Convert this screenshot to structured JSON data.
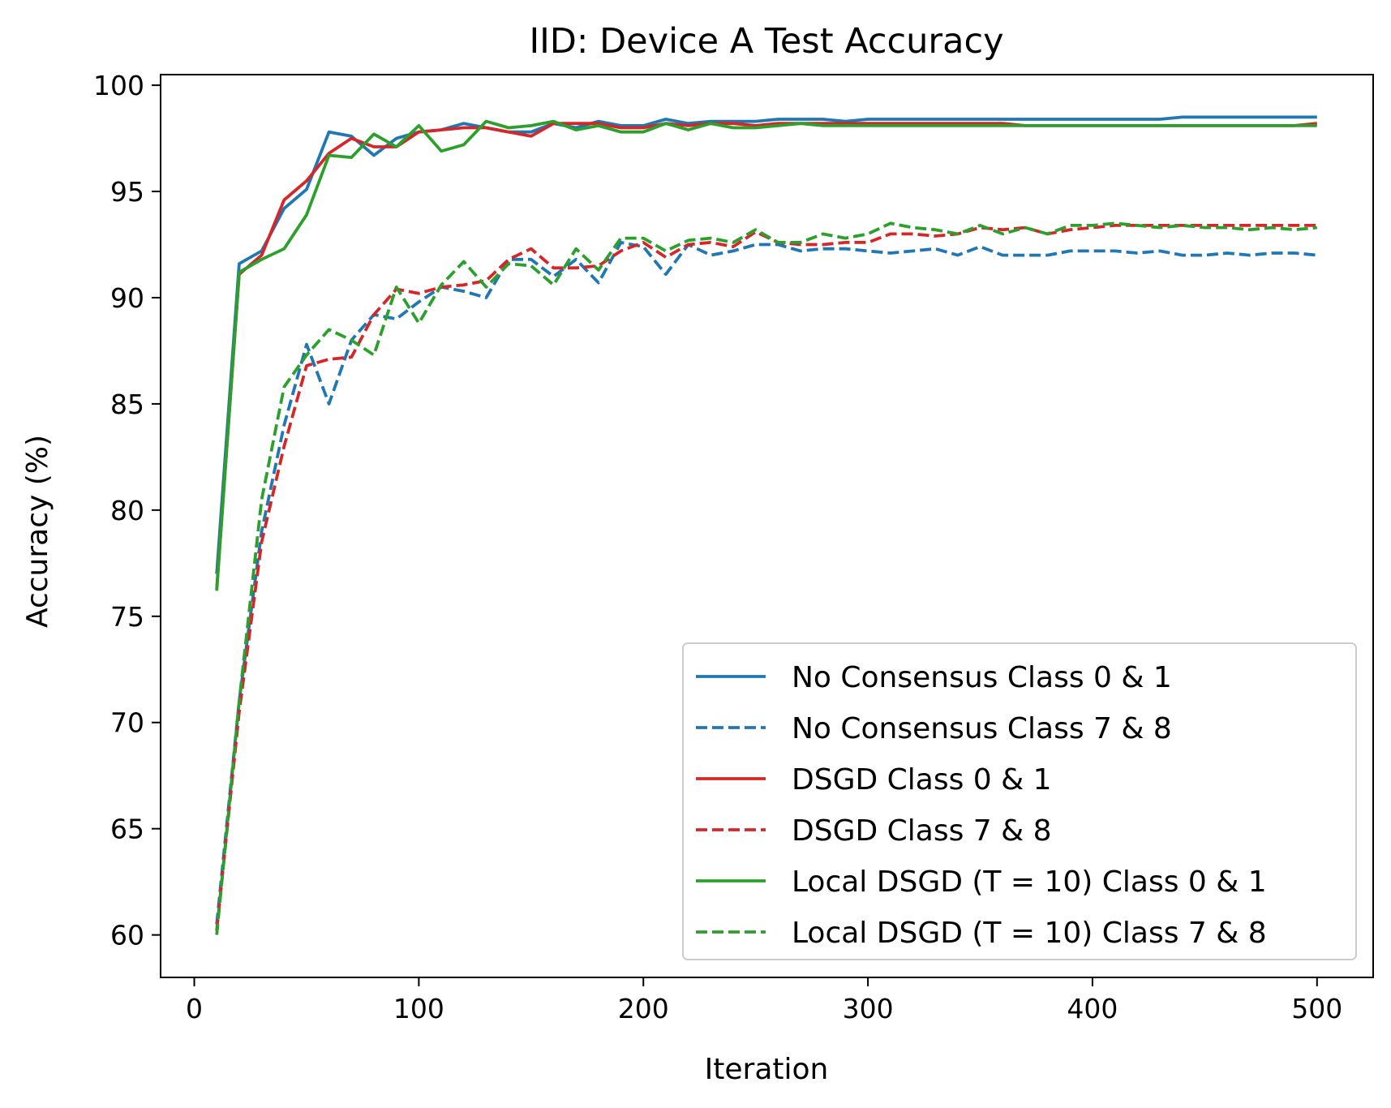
{
  "chart_data": {
    "type": "line",
    "title": "IID: Device A Test Accuracy",
    "xlabel": "Iteration",
    "ylabel": "Accuracy (%)",
    "xlim": [
      -15,
      525
    ],
    "ylim": [
      58,
      100.5
    ],
    "xticks": [
      0,
      100,
      200,
      300,
      400,
      500
    ],
    "yticks": [
      60,
      65,
      70,
      75,
      80,
      85,
      90,
      95,
      100
    ],
    "grid": false,
    "legend_position": "lower-right",
    "x": [
      10,
      20,
      30,
      40,
      50,
      60,
      70,
      80,
      90,
      100,
      110,
      120,
      130,
      140,
      150,
      160,
      170,
      180,
      190,
      200,
      210,
      220,
      230,
      240,
      250,
      260,
      270,
      280,
      290,
      300,
      310,
      320,
      330,
      340,
      350,
      360,
      370,
      380,
      390,
      400,
      410,
      420,
      430,
      440,
      450,
      460,
      470,
      480,
      490,
      500
    ],
    "series": [
      {
        "name": "No Consensus Class 0 & 1",
        "color": "#1f77b4",
        "style": "solid",
        "values": [
          77.0,
          91.6,
          92.2,
          94.2,
          95.1,
          97.8,
          97.6,
          96.7,
          97.5,
          97.8,
          97.9,
          98.2,
          98.0,
          97.8,
          97.8,
          98.2,
          98.0,
          98.3,
          98.1,
          98.1,
          98.4,
          98.2,
          98.3,
          98.3,
          98.3,
          98.4,
          98.4,
          98.4,
          98.3,
          98.4,
          98.4,
          98.4,
          98.4,
          98.4,
          98.4,
          98.4,
          98.4,
          98.4,
          98.4,
          98.4,
          98.4,
          98.4,
          98.4,
          98.5,
          98.5,
          98.5,
          98.5,
          98.5,
          98.5,
          98.5
        ]
      },
      {
        "name": "No Consensus Class 7 & 8",
        "color": "#1f77b4",
        "style": "dashed",
        "values": [
          60.5,
          71.0,
          79.0,
          84.0,
          87.8,
          85.0,
          88.0,
          89.2,
          89.0,
          89.8,
          90.5,
          90.3,
          90.0,
          91.8,
          91.8,
          91.0,
          91.8,
          90.7,
          92.6,
          92.4,
          91.1,
          92.5,
          92.0,
          92.2,
          92.5,
          92.5,
          92.2,
          92.3,
          92.3,
          92.2,
          92.1,
          92.2,
          92.3,
          92.0,
          92.4,
          92.0,
          92.0,
          92.0,
          92.2,
          92.2,
          92.2,
          92.1,
          92.2,
          92.0,
          92.0,
          92.1,
          92.0,
          92.1,
          92.1,
          92.0
        ]
      },
      {
        "name": "DSGD Class 0 & 1",
        "color": "#d62728",
        "style": "solid",
        "values": [
          76.3,
          91.1,
          92.0,
          94.6,
          95.5,
          96.8,
          97.5,
          97.1,
          97.1,
          97.8,
          97.9,
          98.0,
          98.0,
          97.8,
          97.6,
          98.2,
          98.2,
          98.2,
          98.0,
          98.0,
          98.2,
          98.1,
          98.2,
          98.2,
          98.1,
          98.2,
          98.2,
          98.2,
          98.2,
          98.2,
          98.2,
          98.2,
          98.2,
          98.2,
          98.2,
          98.2,
          98.1,
          98.1,
          98.1,
          98.1,
          98.1,
          98.1,
          98.1,
          98.1,
          98.1,
          98.1,
          98.1,
          98.1,
          98.1,
          98.2
        ]
      },
      {
        "name": "DSGD Class 7 & 8",
        "color": "#d62728",
        "style": "dashed",
        "values": [
          60.2,
          70.5,
          78.5,
          83.0,
          86.8,
          87.1,
          87.2,
          89.2,
          90.4,
          90.2,
          90.5,
          90.6,
          90.8,
          91.8,
          92.3,
          91.4,
          91.4,
          91.5,
          92.2,
          92.6,
          91.9,
          92.5,
          92.6,
          92.4,
          93.1,
          92.6,
          92.5,
          92.5,
          92.6,
          92.6,
          93.0,
          93.0,
          92.9,
          93.0,
          93.3,
          93.2,
          93.3,
          93.0,
          93.2,
          93.3,
          93.4,
          93.4,
          93.4,
          93.4,
          93.4,
          93.4,
          93.4,
          93.4,
          93.4,
          93.4
        ]
      },
      {
        "name": "Local DSGD (T = 10) Class 0 & 1",
        "color": "#2ca02c",
        "style": "solid",
        "values": [
          76.2,
          91.2,
          91.8,
          92.3,
          93.9,
          96.7,
          96.6,
          97.7,
          97.1,
          98.1,
          96.9,
          97.2,
          98.3,
          98.0,
          98.1,
          98.3,
          97.9,
          98.1,
          97.8,
          97.8,
          98.2,
          97.9,
          98.2,
          98.0,
          98.0,
          98.1,
          98.2,
          98.1,
          98.1,
          98.1,
          98.1,
          98.1,
          98.1,
          98.1,
          98.1,
          98.1,
          98.1,
          98.1,
          98.1,
          98.1,
          98.1,
          98.1,
          98.1,
          98.1,
          98.1,
          98.1,
          98.1,
          98.1,
          98.1,
          98.1
        ]
      },
      {
        "name": "Local DSGD (T = 10) Class 7 & 8",
        "color": "#2ca02c",
        "style": "dashed",
        "values": [
          60.0,
          71.0,
          80.5,
          85.8,
          87.3,
          88.5,
          88.0,
          87.3,
          90.5,
          88.8,
          90.6,
          91.7,
          90.5,
          91.6,
          91.5,
          90.6,
          92.3,
          91.3,
          92.8,
          92.8,
          92.2,
          92.7,
          92.8,
          92.6,
          93.2,
          92.6,
          92.6,
          93.0,
          92.8,
          93.0,
          93.5,
          93.3,
          93.2,
          93.0,
          93.4,
          93.0,
          93.3,
          93.0,
          93.4,
          93.4,
          93.5,
          93.4,
          93.3,
          93.4,
          93.3,
          93.3,
          93.2,
          93.3,
          93.2,
          93.3
        ]
      }
    ]
  }
}
